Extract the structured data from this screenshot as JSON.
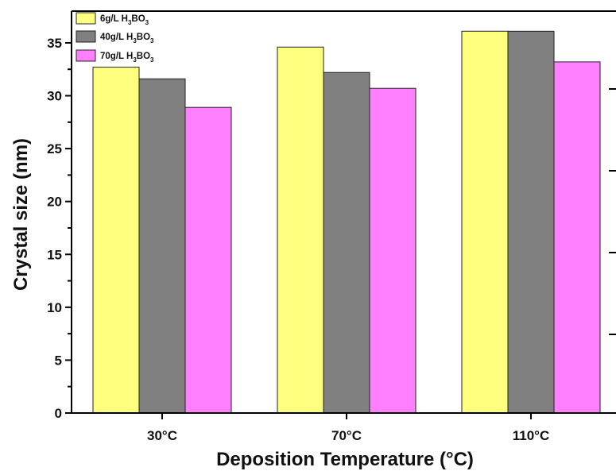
{
  "chart_data": {
    "type": "bar",
    "title": "",
    "xlabel": "Deposition Temperature (°C)",
    "ylabel": "Crystal size (nm)",
    "categories": [
      "30°C",
      "70°C",
      "110°C"
    ],
    "ylim": [
      0,
      38
    ],
    "yticks": [
      0,
      5,
      10,
      15,
      20,
      25,
      30,
      35
    ],
    "grid": false,
    "legend_position": "top-left",
    "series": [
      {
        "name": "6g/L H3BO3",
        "legend_parts": [
          "6g/L H",
          "3",
          "BO",
          "3"
        ],
        "color": "#ffff80",
        "values": [
          32.7,
          34.6,
          36.1
        ]
      },
      {
        "name": "40g/L H3BO3",
        "legend_parts": [
          "40g/L H",
          "3",
          "BO",
          "3"
        ],
        "color": "#808080",
        "values": [
          31.6,
          32.2,
          36.1
        ]
      },
      {
        "name": "70g/L H3BO3",
        "legend_parts": [
          "70g/L H",
          "3",
          "BO",
          "3"
        ],
        "color": "#ff80ff",
        "values": [
          28.9,
          30.7,
          33.2
        ]
      }
    ]
  }
}
